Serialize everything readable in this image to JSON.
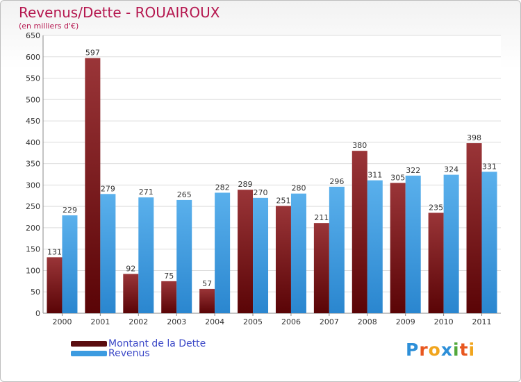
{
  "colors": {
    "title": "#b5174f",
    "dette": "#7a1b1e",
    "revenus": "#3c9be0",
    "grid": "#dddddd",
    "legend_text": "#3b48c7"
  },
  "chart_data": {
    "type": "bar",
    "title": "Revenus/Dette - ROUAIROUX",
    "subtitle": "(en milliers d'€)",
    "xlabel": "",
    "ylabel": "",
    "ylim": [
      0,
      650
    ],
    "yticks": [
      0,
      50,
      100,
      150,
      200,
      250,
      300,
      350,
      400,
      450,
      500,
      550,
      600,
      650
    ],
    "categories": [
      "2000",
      "2001",
      "2002",
      "2003",
      "2004",
      "2005",
      "2006",
      "2007",
      "2008",
      "2009",
      "2010",
      "2011"
    ],
    "series": [
      {
        "name": "Montant de la Dette",
        "values": [
          131,
          597,
          92,
          75,
          57,
          289,
          251,
          211,
          380,
          305,
          235,
          398
        ]
      },
      {
        "name": "Revenus",
        "values": [
          229,
          279,
          271,
          265,
          282,
          270,
          280,
          296,
          311,
          322,
          324,
          331
        ]
      }
    ],
    "grid": true,
    "legend": "bottom-left"
  },
  "legend": {
    "dette_label": "Montant de la Dette",
    "revenus_label": "Revenus"
  },
  "logo": {
    "text": "Proxiti"
  }
}
